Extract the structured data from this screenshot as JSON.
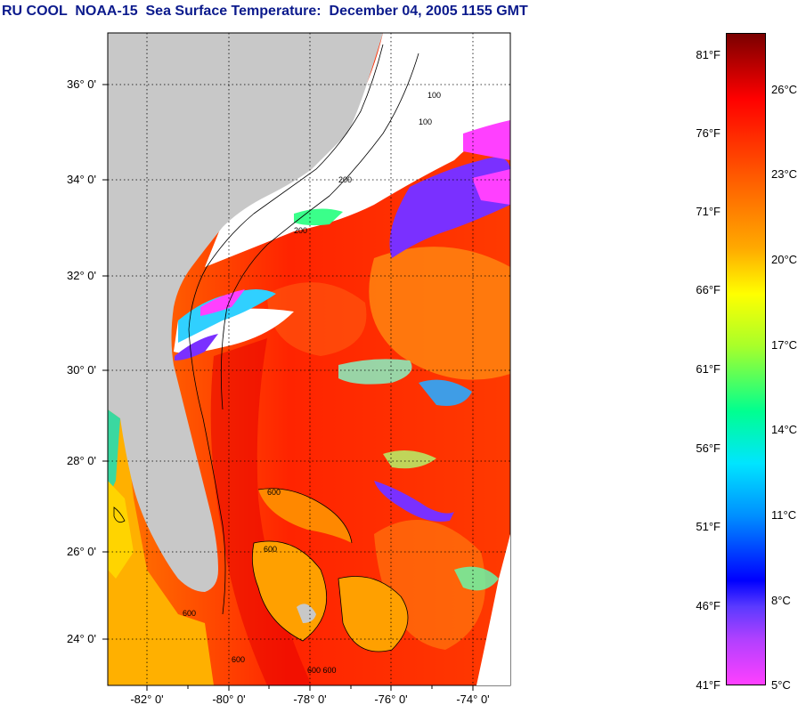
{
  "title": "RU COOL  NOAA-15  Sea Surface Temperature:  December 04, 2005 1155 GMT",
  "latitude_labels": [
    "36° 0'",
    "34° 0'",
    "32° 0'",
    "30° 0'",
    "28° 0'",
    "26° 0'",
    "24° 0'"
  ],
  "longitude_labels": [
    "-82° 0'",
    "-80° 0'",
    "-78° 0'",
    "-76° 0'",
    "-74° 0'"
  ],
  "colorbar": {
    "fahrenheit_labels": [
      "81°F",
      "76°F",
      "71°F",
      "66°F",
      "61°F",
      "56°F",
      "51°F",
      "46°F",
      "41°F"
    ],
    "celsius_labels": [
      "26°C",
      "23°C",
      "20°C",
      "17°C",
      "14°C",
      "11°C",
      "8°C",
      "5°C"
    ]
  },
  "isobath_labels": [
    "100",
    "100",
    "200",
    "200",
    "600",
    "600",
    "600",
    "600",
    "600 600"
  ],
  "colors": {
    "land": "#c8c8c8",
    "cloud": "#ffffff",
    "title": "#0b1a8c",
    "warm_water": "#ff2a00",
    "gulf_stream": "#e60000",
    "cool_water": "#ff9900"
  }
}
